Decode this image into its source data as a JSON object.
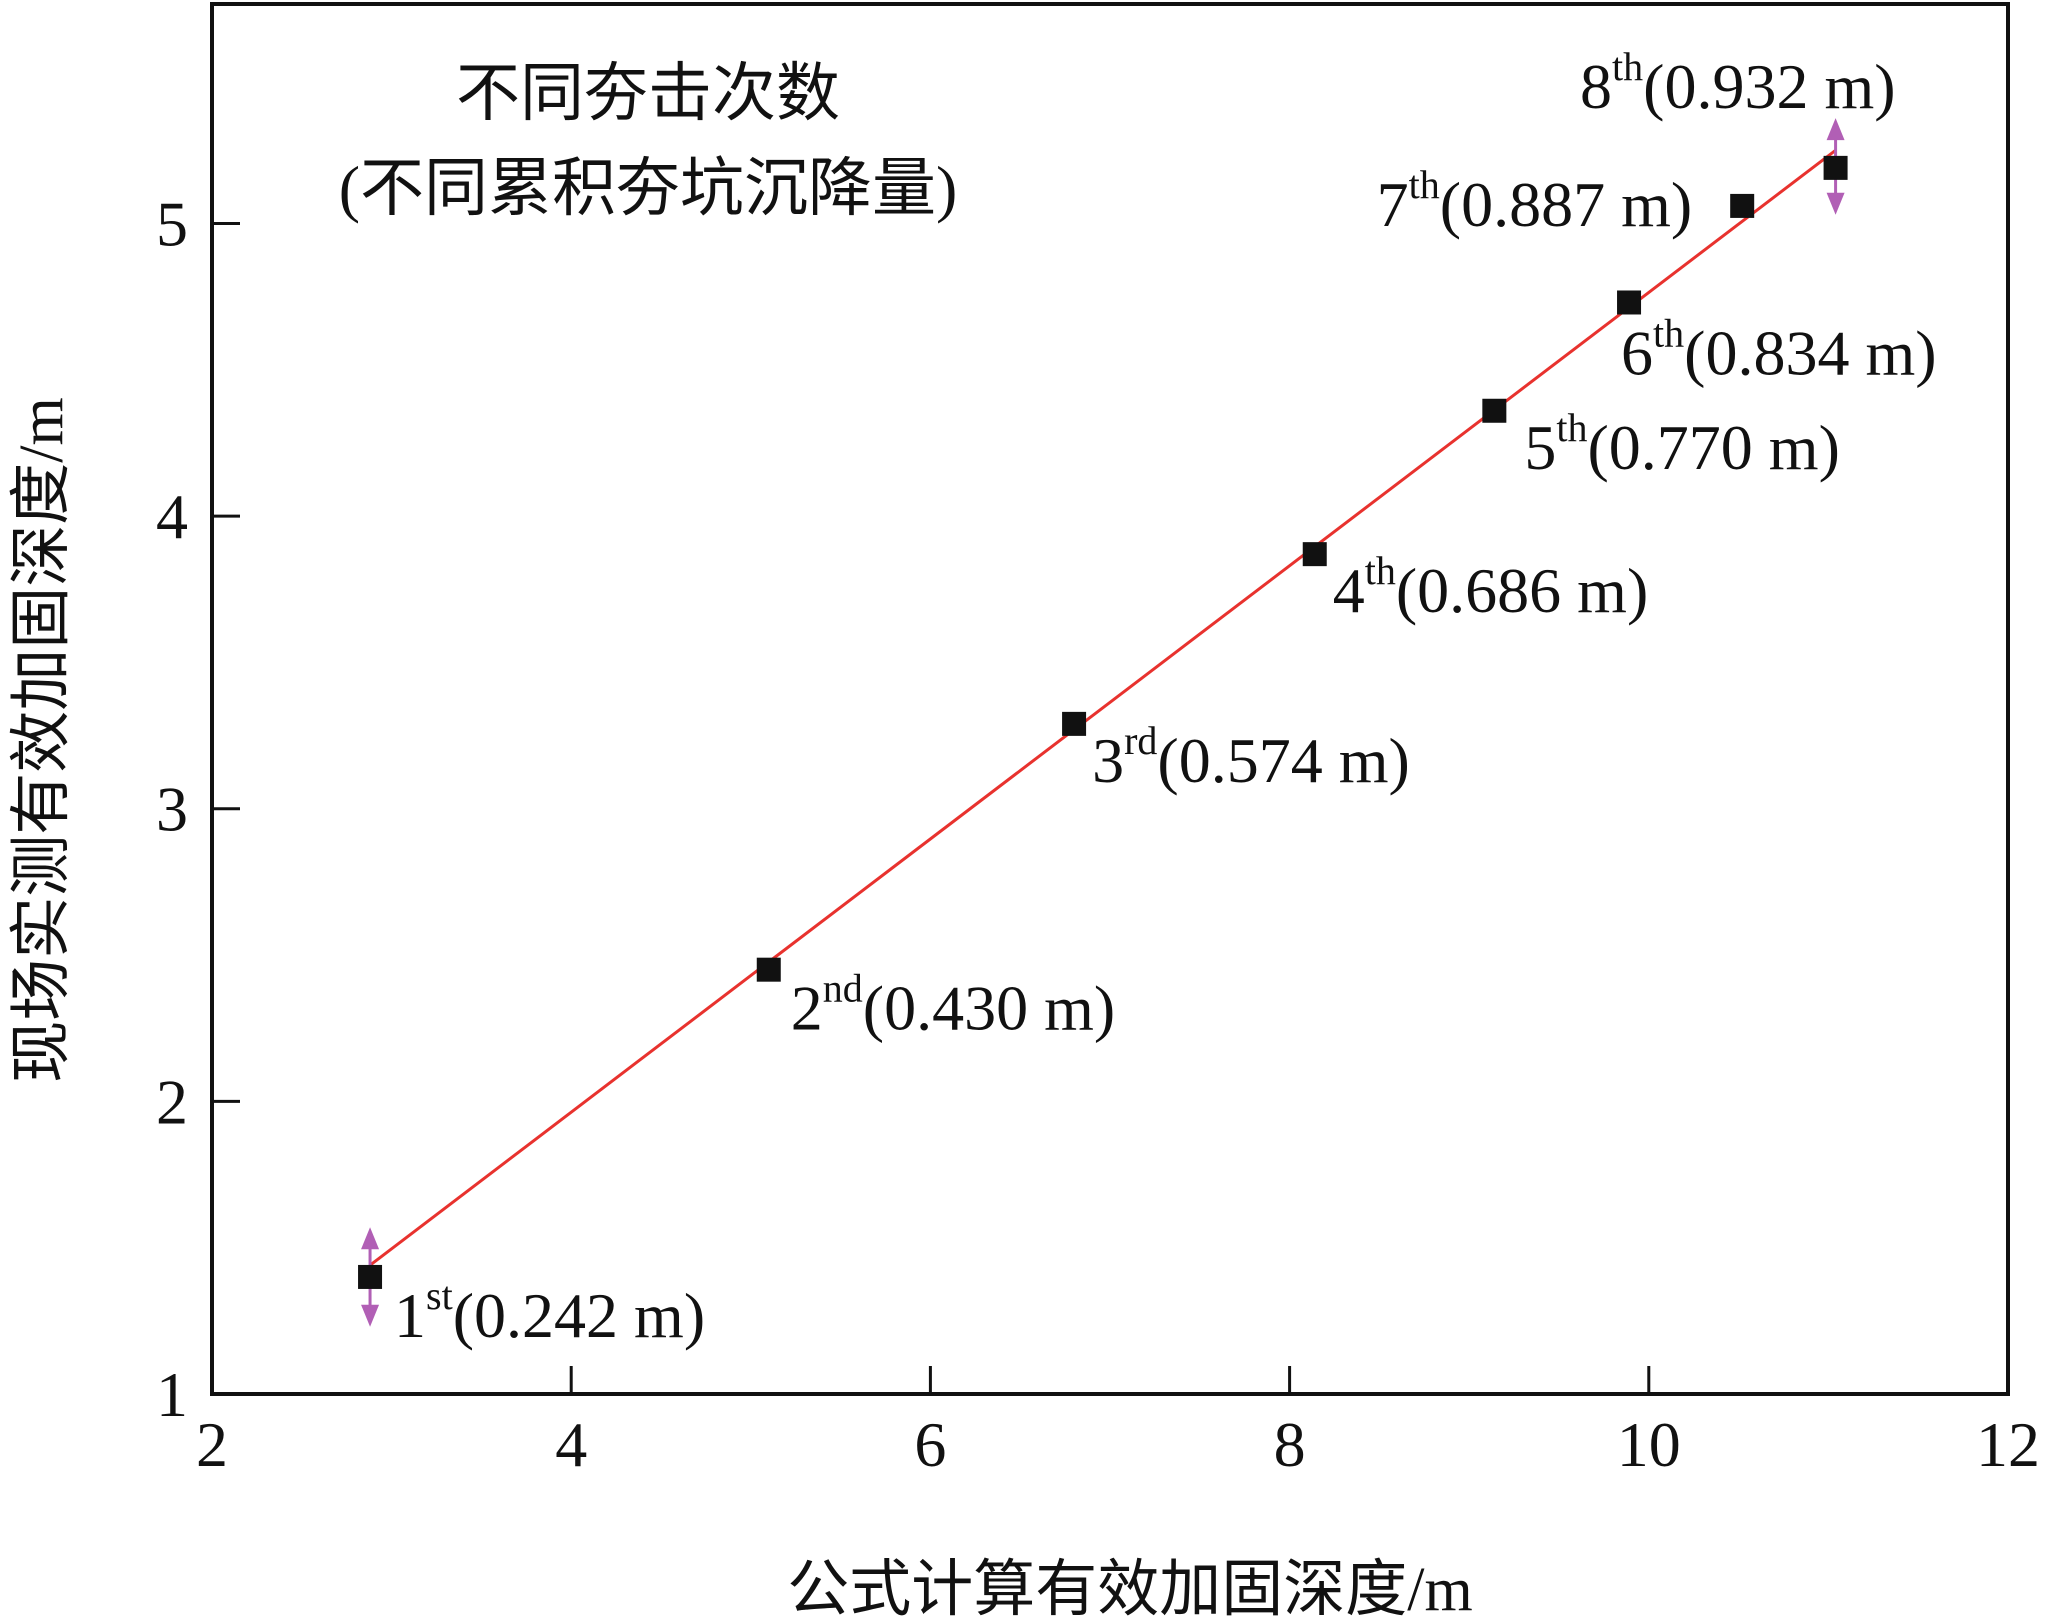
{
  "chart_data": {
    "type": "scatter",
    "title": "",
    "xlabel": "公式计算有效加固深度/m",
    "ylabel": "现场实测有效加固深度/m",
    "xlim": [
      2,
      12
    ],
    "ylim": [
      1,
      5.75
    ],
    "x_ticks": [
      "2",
      "4",
      "6",
      "8",
      "10",
      "12"
    ],
    "y_ticks": [
      "1",
      "2",
      "3",
      "4",
      "5"
    ],
    "legend_title": [
      "不同夯击次数",
      "(不同累积夯坑沉降量)"
    ],
    "grid": false,
    "points": [
      {
        "x": 2.88,
        "y": 1.4,
        "label_main": "1",
        "label_sup": "st",
        "label_rest": "(0.242 m)"
      },
      {
        "x": 5.1,
        "y": 2.45,
        "label_main": "2",
        "label_sup": "nd",
        "label_rest": "(0.430 m)"
      },
      {
        "x": 6.8,
        "y": 3.29,
        "label_main": "3",
        "label_sup": "rd",
        "label_rest": "(0.574 m)"
      },
      {
        "x": 8.14,
        "y": 3.87,
        "label_main": "4",
        "label_sup": "th",
        "label_rest": "(0.686 m)"
      },
      {
        "x": 9.14,
        "y": 4.36,
        "label_main": "5",
        "label_sup": "th",
        "label_rest": "(0.770 m)"
      },
      {
        "x": 9.89,
        "y": 4.73,
        "label_main": "6",
        "label_sup": "th",
        "label_rest": "(0.834 m)"
      },
      {
        "x": 10.52,
        "y": 5.06,
        "label_main": "7",
        "label_sup": "th",
        "label_rest": "(0.887 m)"
      },
      {
        "x": 11.04,
        "y": 5.19,
        "label_main": "8",
        "label_sup": "th",
        "label_rest": "(0.932 m)"
      }
    ],
    "fit_line": {
      "x": [
        2.88,
        11.04
      ],
      "y": [
        1.44,
        5.25
      ],
      "color": "#e8322e"
    },
    "error_markers": [
      {
        "x": 2.88,
        "y": 1.4,
        "y_low": 1.23,
        "y_high": 1.57
      },
      {
        "x": 11.04,
        "y": 5.19,
        "y_low": 5.03,
        "y_high": 5.36
      }
    ],
    "colors": {
      "marker": "#111111",
      "fit": "#e8322e",
      "error": "#b15fb5"
    }
  }
}
